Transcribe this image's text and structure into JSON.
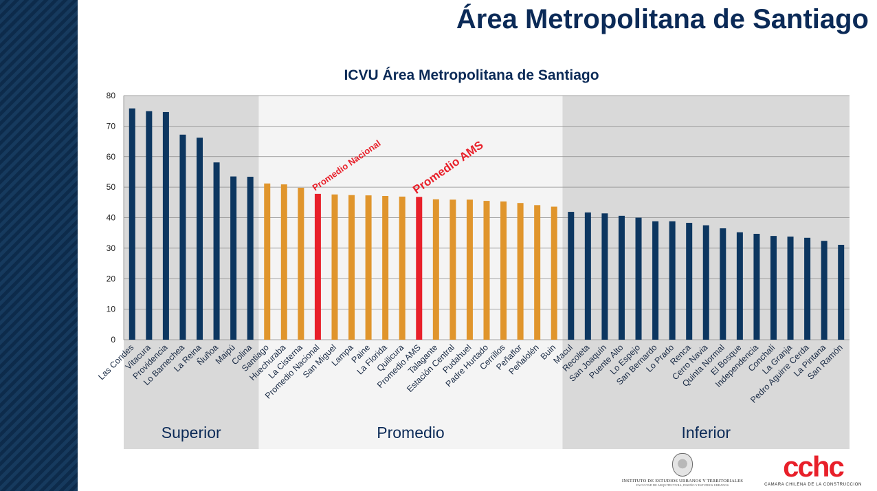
{
  "header": {
    "title": "Área Metropolitana de Santiago"
  },
  "chart_data": {
    "type": "bar",
    "title": "ICVU Área Metropolitana de Santiago",
    "xlabel": "",
    "ylabel": "",
    "ylim": [
      0,
      80
    ],
    "yticks": [
      0,
      10,
      20,
      30,
      40,
      50,
      60,
      70,
      80
    ],
    "grid": true,
    "categories": [
      "Las Condes",
      "Vitacura",
      "Providencia",
      "Lo Barnechea",
      "La Reina",
      "Ñuñoa",
      "Maipú",
      "Colina",
      "Santiago",
      "Huechuraba",
      "La Cisterna",
      "Promedio Nacional",
      "San Miguel",
      "Lampa",
      "Paine",
      "La Florida",
      "Quilicura",
      "Promedio AMS",
      "Talagante",
      "Estación Central",
      "Pudahuel",
      "Padre Hurtado",
      "Cerrillos",
      "Peñaflor",
      "Peñalolén",
      "Buin",
      "Macul",
      "Recoleta",
      "San Joaquín",
      "Puente Alto",
      "Lo Espejo",
      "San Bernardo",
      "Lo Prado",
      "Renca",
      "Cerro Navia",
      "Quinta Normal",
      "El Bosque",
      "Independencia",
      "Conchalí",
      "La Granja",
      "Pedro Aguirre Cerda",
      "La Pintana",
      "San Ramón"
    ],
    "values": [
      75.8,
      74.9,
      74.6,
      67.2,
      66.2,
      58.1,
      53.5,
      53.4,
      51.2,
      50.9,
      49.8,
      47.8,
      47.6,
      47.4,
      47.3,
      47.1,
      46.9,
      46.8,
      46.0,
      45.9,
      45.9,
      45.5,
      45.3,
      44.8,
      44.1,
      43.6,
      41.9,
      41.7,
      41.4,
      40.6,
      40.0,
      38.8,
      38.8,
      38.3,
      37.5,
      36.5,
      35.2,
      34.7,
      34.0,
      33.8,
      33.4,
      32.4,
      31.1
    ],
    "groups": [
      {
        "label": "Superior",
        "start": 0,
        "end": 7,
        "color": "#0c3660"
      },
      {
        "label": "Promedio",
        "start": 8,
        "end": 25,
        "color": "#e0952c"
      },
      {
        "label": "Inferior",
        "start": 26,
        "end": 42,
        "color": "#0c3660"
      }
    ],
    "highlight_color": "#e8202a",
    "annotations": [
      {
        "text": "Promedio Nacional",
        "category": "Promedio Nacional"
      },
      {
        "text": "Promedio AMS",
        "category": "Promedio AMS"
      }
    ]
  },
  "logos": {
    "institute_name": "INSTITUTO DE ESTUDIOS URBANOS Y TERRITORIALES",
    "institute_sub": "FACULTAD DE ARQUITECTURA, DISEÑO Y ESTUDIOS URBANOS",
    "cchc_mark": "cchc",
    "cchc_name": "CAMARA CHILENA DE LA CONSTRUCCION"
  }
}
